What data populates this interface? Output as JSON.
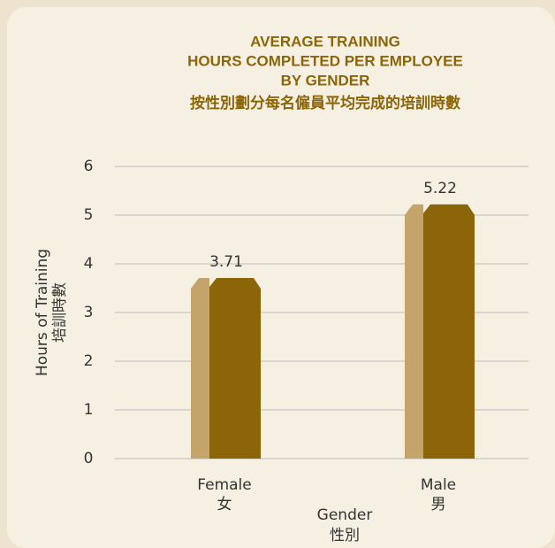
{
  "chart_data": {
    "type": "bar",
    "title": [
      "AVERAGE TRAINING",
      "HOURS COMPLETED PER EMPLOYEE",
      "BY GENDER"
    ],
    "subtitle": "按性別劃分每名僱員平均完成的培訓時數",
    "y_label": [
      "Hours of Training",
      "培訓時數"
    ],
    "x_label": [
      "Gender",
      "性別"
    ],
    "categories": [
      [
        "Female",
        "女"
      ],
      [
        "Male",
        "男"
      ]
    ],
    "values": [
      3.71,
      5.22
    ],
    "color": "#8b6508",
    "side_color": "#c4a46a",
    "ylim": [
      0,
      6
    ],
    "yticks": [
      0,
      1,
      2,
      3,
      4,
      5,
      6
    ],
    "grid": true
  }
}
